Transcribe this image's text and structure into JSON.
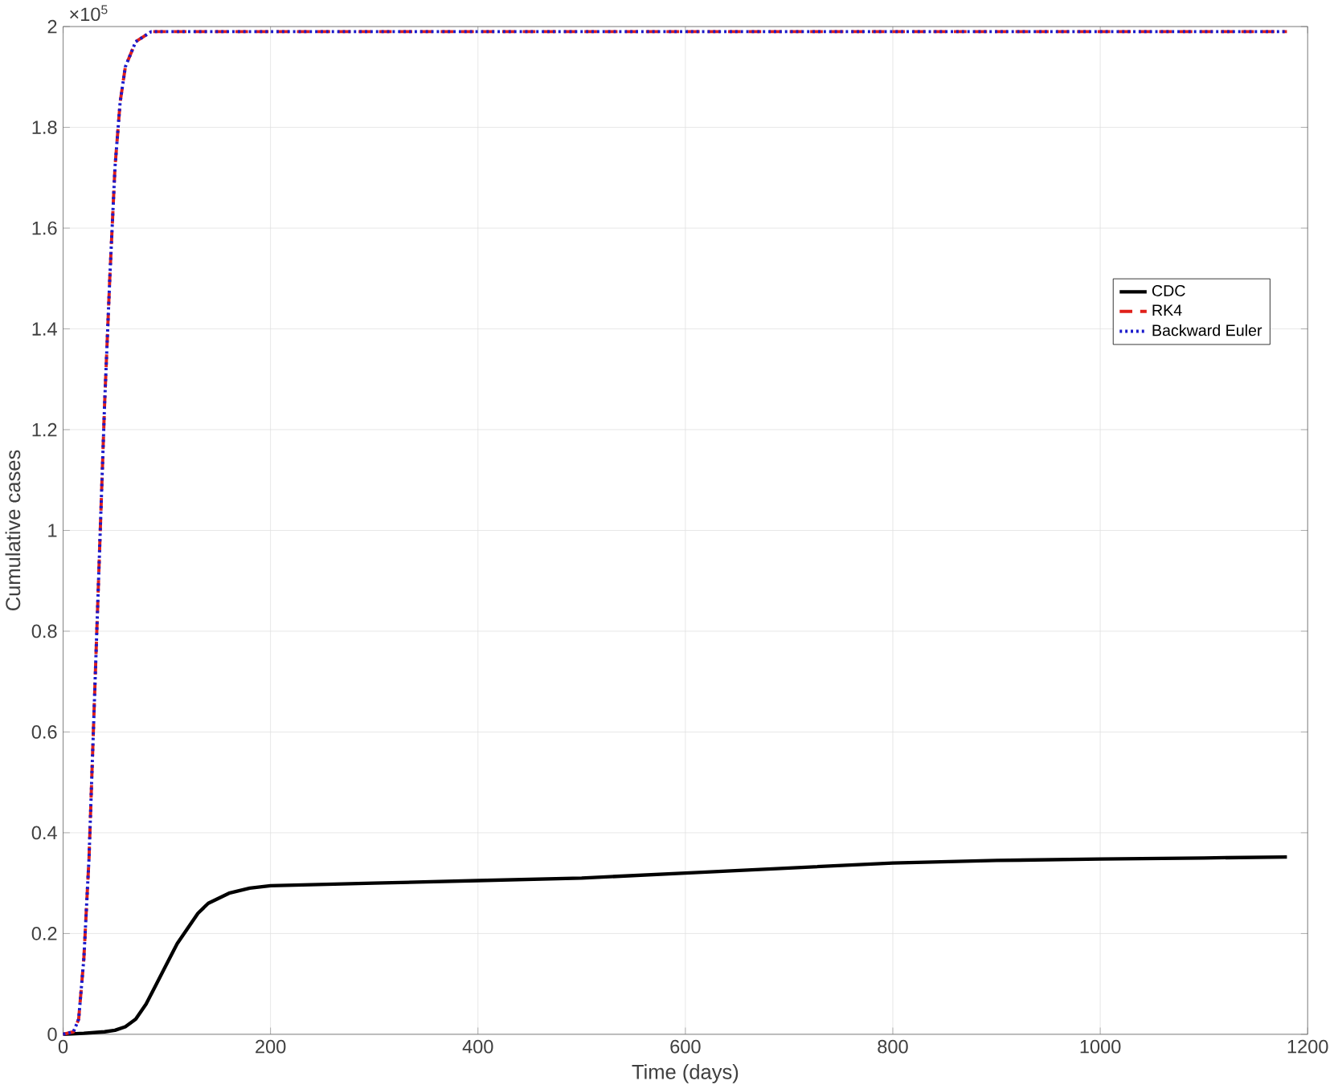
{
  "chart_data": {
    "type": "line",
    "xlabel": "Time (days)",
    "ylabel": "Cumulative cases",
    "annotations": [
      "×10$^{5}$"
    ],
    "xlim": [
      0,
      1200
    ],
    "xticks": [
      0,
      200,
      400,
      600,
      800,
      1000,
      1200
    ],
    "ylim": [
      0,
      2
    ],
    "yticks": [
      0,
      0.2,
      0.4,
      0.6,
      0.8,
      1,
      1.2,
      1.4,
      1.6,
      1.8,
      2
    ],
    "grid": true,
    "legend": "right",
    "marker": "none",
    "series": [
      {
        "name": "CDC",
        "color": "#000000",
        "line_style": "solid",
        "x": [
          0,
          20,
          40,
          50,
          60,
          70,
          80,
          90,
          100,
          110,
          120,
          130,
          140,
          160,
          180,
          200,
          300,
          400,
          500,
          600,
          700,
          800,
          900,
          1000,
          1100,
          1180
        ],
        "values": [
          0,
          0.002,
          0.005,
          0.008,
          0.015,
          0.03,
          0.06,
          0.1,
          0.14,
          0.18,
          0.21,
          0.24,
          0.26,
          0.28,
          0.29,
          0.295,
          0.3,
          0.305,
          0.31,
          0.32,
          0.33,
          0.34,
          0.345,
          0.348,
          0.35,
          0.352
        ]
      },
      {
        "name": "RK4",
        "color": "#e0201a",
        "line_style": "dashed",
        "x": [
          0,
          10,
          15,
          20,
          25,
          30,
          35,
          40,
          45,
          50,
          55,
          60,
          70,
          85,
          100,
          200,
          400,
          600,
          800,
          1000,
          1180
        ],
        "values": [
          0,
          0.005,
          0.03,
          0.15,
          0.35,
          0.65,
          0.95,
          1.25,
          1.5,
          1.72,
          1.85,
          1.92,
          1.97,
          1.99,
          1.99,
          1.99,
          1.99,
          1.99,
          1.99,
          1.99,
          1.99
        ]
      },
      {
        "name": "Backward Euler",
        "color": "#1a1acc",
        "line_style": "dotted",
        "x": [
          0,
          10,
          15,
          20,
          25,
          30,
          35,
          40,
          45,
          50,
          55,
          60,
          70,
          85,
          100,
          200,
          400,
          600,
          800,
          1000,
          1180
        ],
        "values": [
          0,
          0.005,
          0.03,
          0.15,
          0.35,
          0.65,
          0.95,
          1.25,
          1.5,
          1.72,
          1.85,
          1.92,
          1.97,
          1.99,
          1.99,
          1.99,
          1.99,
          1.99,
          1.99,
          1.99,
          1.99
        ]
      }
    ]
  }
}
